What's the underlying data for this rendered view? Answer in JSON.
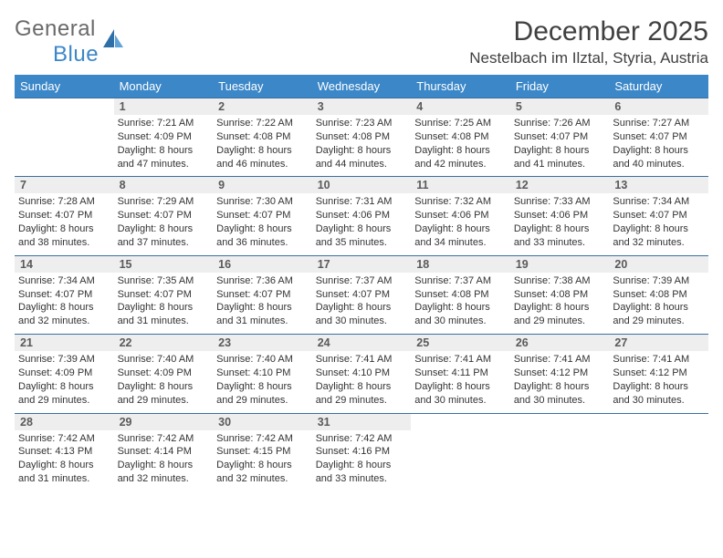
{
  "logo": {
    "line1": "General",
    "line2": "Blue"
  },
  "title": "December 2025",
  "location": "Nestelbach im Ilztal, Styria, Austria",
  "colors": {
    "header_bg": "#3b87c8",
    "header_text": "#ffffff",
    "daynum_bg": "#eeeeee",
    "row_border": "#3b6f9f",
    "body_text": "#333333",
    "logo_gray": "#6a6a6a",
    "logo_blue": "#3b87c8"
  },
  "weekdays": [
    "Sunday",
    "Monday",
    "Tuesday",
    "Wednesday",
    "Thursday",
    "Friday",
    "Saturday"
  ],
  "cells": [
    [
      null,
      {
        "n": "1",
        "sr": "7:21 AM",
        "ss": "4:09 PM",
        "dl": "8 hours and 47 minutes."
      },
      {
        "n": "2",
        "sr": "7:22 AM",
        "ss": "4:08 PM",
        "dl": "8 hours and 46 minutes."
      },
      {
        "n": "3",
        "sr": "7:23 AM",
        "ss": "4:08 PM",
        "dl": "8 hours and 44 minutes."
      },
      {
        "n": "4",
        "sr": "7:25 AM",
        "ss": "4:08 PM",
        "dl": "8 hours and 42 minutes."
      },
      {
        "n": "5",
        "sr": "7:26 AM",
        "ss": "4:07 PM",
        "dl": "8 hours and 41 minutes."
      },
      {
        "n": "6",
        "sr": "7:27 AM",
        "ss": "4:07 PM",
        "dl": "8 hours and 40 minutes."
      }
    ],
    [
      {
        "n": "7",
        "sr": "7:28 AM",
        "ss": "4:07 PM",
        "dl": "8 hours and 38 minutes."
      },
      {
        "n": "8",
        "sr": "7:29 AM",
        "ss": "4:07 PM",
        "dl": "8 hours and 37 minutes."
      },
      {
        "n": "9",
        "sr": "7:30 AM",
        "ss": "4:07 PM",
        "dl": "8 hours and 36 minutes."
      },
      {
        "n": "10",
        "sr": "7:31 AM",
        "ss": "4:06 PM",
        "dl": "8 hours and 35 minutes."
      },
      {
        "n": "11",
        "sr": "7:32 AM",
        "ss": "4:06 PM",
        "dl": "8 hours and 34 minutes."
      },
      {
        "n": "12",
        "sr": "7:33 AM",
        "ss": "4:06 PM",
        "dl": "8 hours and 33 minutes."
      },
      {
        "n": "13",
        "sr": "7:34 AM",
        "ss": "4:07 PM",
        "dl": "8 hours and 32 minutes."
      }
    ],
    [
      {
        "n": "14",
        "sr": "7:34 AM",
        "ss": "4:07 PM",
        "dl": "8 hours and 32 minutes."
      },
      {
        "n": "15",
        "sr": "7:35 AM",
        "ss": "4:07 PM",
        "dl": "8 hours and 31 minutes."
      },
      {
        "n": "16",
        "sr": "7:36 AM",
        "ss": "4:07 PM",
        "dl": "8 hours and 31 minutes."
      },
      {
        "n": "17",
        "sr": "7:37 AM",
        "ss": "4:07 PM",
        "dl": "8 hours and 30 minutes."
      },
      {
        "n": "18",
        "sr": "7:37 AM",
        "ss": "4:08 PM",
        "dl": "8 hours and 30 minutes."
      },
      {
        "n": "19",
        "sr": "7:38 AM",
        "ss": "4:08 PM",
        "dl": "8 hours and 29 minutes."
      },
      {
        "n": "20",
        "sr": "7:39 AM",
        "ss": "4:08 PM",
        "dl": "8 hours and 29 minutes."
      }
    ],
    [
      {
        "n": "21",
        "sr": "7:39 AM",
        "ss": "4:09 PM",
        "dl": "8 hours and 29 minutes."
      },
      {
        "n": "22",
        "sr": "7:40 AM",
        "ss": "4:09 PM",
        "dl": "8 hours and 29 minutes."
      },
      {
        "n": "23",
        "sr": "7:40 AM",
        "ss": "4:10 PM",
        "dl": "8 hours and 29 minutes."
      },
      {
        "n": "24",
        "sr": "7:41 AM",
        "ss": "4:10 PM",
        "dl": "8 hours and 29 minutes."
      },
      {
        "n": "25",
        "sr": "7:41 AM",
        "ss": "4:11 PM",
        "dl": "8 hours and 30 minutes."
      },
      {
        "n": "26",
        "sr": "7:41 AM",
        "ss": "4:12 PM",
        "dl": "8 hours and 30 minutes."
      },
      {
        "n": "27",
        "sr": "7:41 AM",
        "ss": "4:12 PM",
        "dl": "8 hours and 30 minutes."
      }
    ],
    [
      {
        "n": "28",
        "sr": "7:42 AM",
        "ss": "4:13 PM",
        "dl": "8 hours and 31 minutes."
      },
      {
        "n": "29",
        "sr": "7:42 AM",
        "ss": "4:14 PM",
        "dl": "8 hours and 32 minutes."
      },
      {
        "n": "30",
        "sr": "7:42 AM",
        "ss": "4:15 PM",
        "dl": "8 hours and 32 minutes."
      },
      {
        "n": "31",
        "sr": "7:42 AM",
        "ss": "4:16 PM",
        "dl": "8 hours and 33 minutes."
      },
      null,
      null,
      null
    ]
  ],
  "labels": {
    "sunrise": "Sunrise:",
    "sunset": "Sunset:",
    "daylight": "Daylight:"
  }
}
